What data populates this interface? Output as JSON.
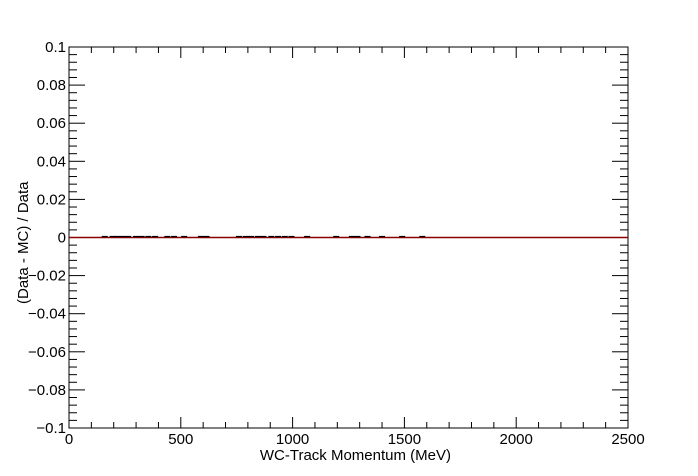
{
  "chart_data": {
    "type": "line",
    "title": "",
    "xlabel": "WC-Track Momentum (MeV)",
    "ylabel": "(Data - MC) / Data",
    "xlim": [
      0,
      2500
    ],
    "ylim": [
      -0.1,
      0.1
    ],
    "x_ticks": [
      0,
      500,
      1000,
      1500,
      2000,
      2500
    ],
    "x_tick_labels": [
      "0",
      "500",
      "1000",
      "1500",
      "2000",
      "2500"
    ],
    "y_ticks": [
      -0.1,
      -0.08,
      -0.06,
      -0.04,
      -0.02,
      0,
      0.02,
      0.04,
      0.06,
      0.08,
      0.1
    ],
    "y_tick_labels": [
      "−0.1",
      "−0.08",
      "−0.06",
      "−0.04",
      "−0.02",
      "0",
      "0.02",
      "0.04",
      "0.06",
      "0.08",
      "0.1"
    ],
    "grid": false,
    "series": [
      {
        "color": "#8b0000",
        "x": [
          0,
          2500
        ],
        "y": [
          0,
          0
        ]
      }
    ],
    "markers": {
      "color": "#000000",
      "x": [
        160,
        195,
        215,
        240,
        265,
        300,
        325,
        355,
        385,
        440,
        470,
        515,
        590,
        615,
        760,
        790,
        815,
        845,
        870,
        905,
        935,
        965,
        995,
        1065,
        1195,
        1265,
        1290,
        1335,
        1400,
        1490,
        1580
      ],
      "y": [
        0,
        0,
        0,
        0,
        0,
        0,
        0,
        0,
        0,
        0,
        0,
        0,
        0,
        0,
        0,
        0,
        0,
        0,
        0,
        0,
        0,
        0,
        0,
        0,
        0,
        0,
        0,
        0,
        0,
        0,
        0
      ]
    }
  }
}
